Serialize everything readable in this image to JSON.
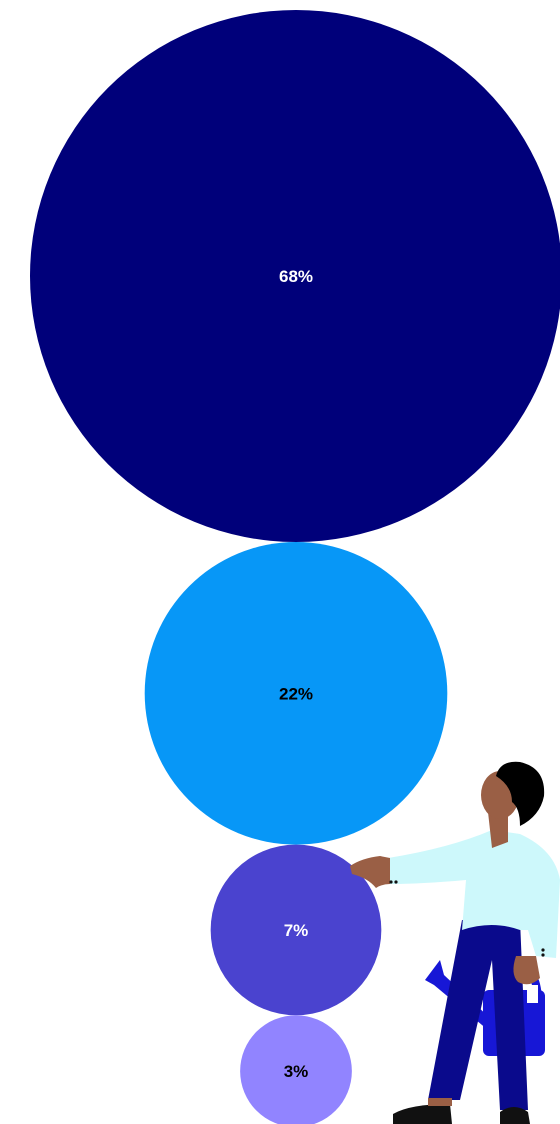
{
  "chart_data": {
    "type": "bubble-stack",
    "title": "",
    "values": [
      68,
      22,
      7,
      3
    ],
    "labels": [
      "68%",
      "22%",
      "7%",
      "3%"
    ],
    "colors": [
      "#00007a",
      "#0797f7",
      "#4a43cf",
      "#9184ff"
    ],
    "label_colors": [
      "#ffffff",
      "#000000",
      "#ffffff",
      "#000000"
    ]
  },
  "illustration": {
    "name": "person-with-watering-can",
    "colors": {
      "shirt": "#cdf8fb",
      "pants": "#0a0a8c",
      "skin": "#9a5f45",
      "hair": "#000000",
      "can": "#1717d6"
    }
  }
}
